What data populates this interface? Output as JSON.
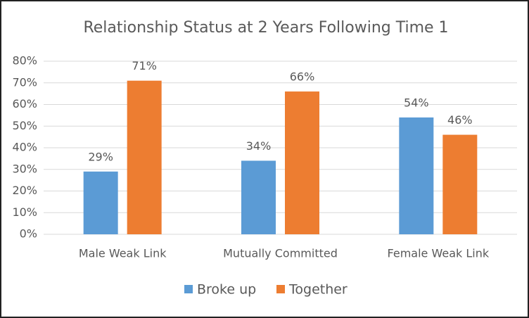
{
  "chart_data": {
    "type": "bar",
    "title": "Relationship Status at 2 Years Following Time 1",
    "categories": [
      "Male Weak Link",
      "Mutually Committed",
      "Female Weak Link"
    ],
    "series": [
      {
        "name": "Broke up",
        "color": "#5b9bd5",
        "values": [
          29,
          34,
          54
        ],
        "value_labels": [
          "29%",
          "34%",
          "54%"
        ]
      },
      {
        "name": "Together",
        "color": "#ed7d31",
        "values": [
          71,
          66,
          46
        ],
        "value_labels": [
          "71%",
          "66%",
          "46%"
        ]
      }
    ],
    "ylim": [
      0,
      80
    ],
    "yticks": [
      {
        "value": 0,
        "label": "0%"
      },
      {
        "value": 10,
        "label": "10%"
      },
      {
        "value": 20,
        "label": "20%"
      },
      {
        "value": 30,
        "label": "30%"
      },
      {
        "value": 40,
        "label": "40%"
      },
      {
        "value": 50,
        "label": "50%"
      },
      {
        "value": 60,
        "label": "60%"
      },
      {
        "value": 70,
        "label": "70%"
      },
      {
        "value": 80,
        "label": "80%"
      }
    ],
    "grid": true,
    "legend": "bottom"
  }
}
